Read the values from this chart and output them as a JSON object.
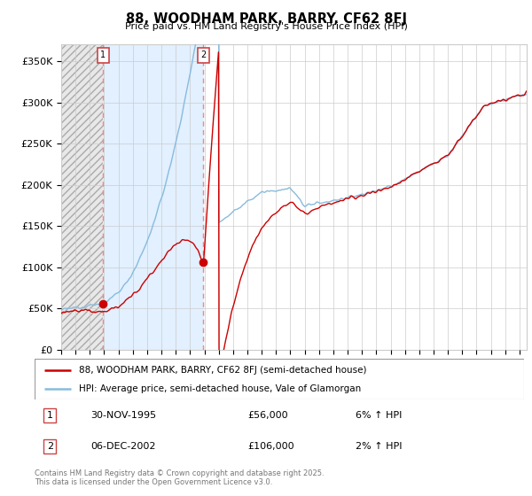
{
  "title": "88, WOODHAM PARK, BARRY, CF62 8FJ",
  "subtitle": "Price paid vs. HM Land Registry's House Price Index (HPI)",
  "ylim": [
    0,
    370000
  ],
  "xlim_start": 1993.0,
  "xlim_end": 2025.5,
  "purchase1_date": 1995.92,
  "purchase1_price": 56000,
  "purchase2_date": 2002.93,
  "purchase2_price": 106000,
  "legend_line1": "88, WOODHAM PARK, BARRY, CF62 8FJ (semi-detached house)",
  "legend_line2": "HPI: Average price, semi-detached house, Vale of Glamorgan",
  "line_color_price": "#cc0000",
  "line_color_hpi": "#88bbdd",
  "hatch_color": "#aaaaaa",
  "hatch_bg": "#e8e8e8",
  "lightblue_fill": "#ddeeff",
  "purchase_marker_color": "#cc0000",
  "vline_color": "#ee8888",
  "box_edge_color": "#cc4444",
  "grid_color": "#cccccc",
  "ann1_date": "30-NOV-1995",
  "ann1_price": "£56,000",
  "ann1_hpi": "6% ↑ HPI",
  "ann2_date": "06-DEC-2002",
  "ann2_price": "£106,000",
  "ann2_hpi": "2% ↑ HPI",
  "footer1": "Contains HM Land Registry data © Crown copyright and database right 2025.",
  "footer2": "This data is licensed under the Open Government Licence v3.0."
}
